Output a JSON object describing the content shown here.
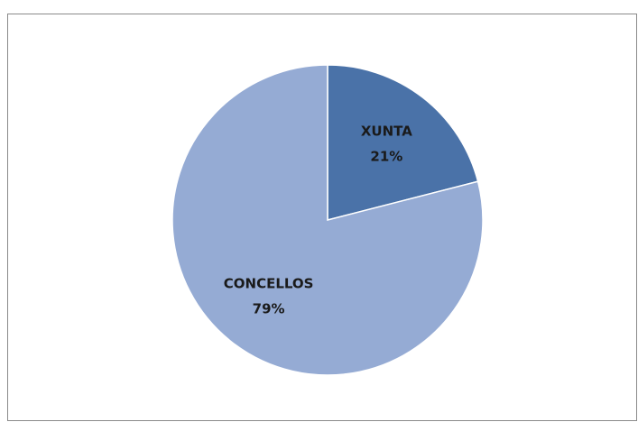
{
  "chart_data": {
    "type": "pie",
    "categories": [
      "XUNTA",
      "CONCELLOS"
    ],
    "values": [
      21,
      79
    ],
    "value_labels": [
      "21%",
      "79%"
    ],
    "colors": [
      "#4a72a8",
      "#95abd4"
    ]
  }
}
